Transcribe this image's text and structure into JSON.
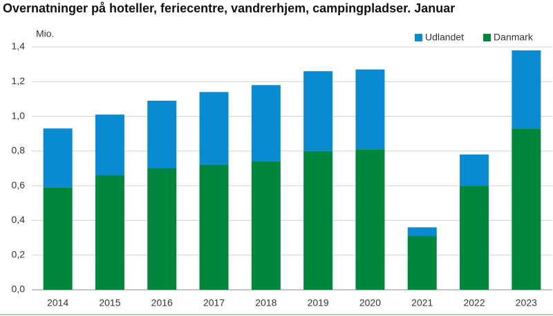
{
  "chart_data": {
    "type": "stacked_bar",
    "title": "Overnatninger på hoteller, feriecentre, vandrerhjem, campingpladser. Januar",
    "y_label": "Mio.",
    "categories": [
      "2014",
      "2015",
      "2016",
      "2017",
      "2018",
      "2019",
      "2020",
      "2021",
      "2022",
      "2023"
    ],
    "series": [
      {
        "name": "Udlandet",
        "color": "#0a8bd1",
        "values": [
          0.34,
          0.35,
          0.39,
          0.42,
          0.44,
          0.46,
          0.46,
          0.05,
          0.18,
          0.45
        ]
      },
      {
        "name": "Danmark",
        "color": "#00873c",
        "values": [
          0.59,
          0.66,
          0.7,
          0.72,
          0.74,
          0.8,
          0.81,
          0.31,
          0.6,
          0.93
        ]
      }
    ],
    "ylim": [
      0,
      1.4
    ],
    "yticks": [
      {
        "value": 0,
        "label": "0,0"
      },
      {
        "value": 0.2,
        "label": "0,2"
      },
      {
        "value": 0.4,
        "label": "0,4"
      },
      {
        "value": 0.6,
        "label": "0,6"
      },
      {
        "value": 0.8,
        "label": "0,8"
      },
      {
        "value": 1.0,
        "label": "1,0"
      },
      {
        "value": 1.2,
        "label": "1,2"
      },
      {
        "value": 1.4,
        "label": "1,4"
      }
    ],
    "grid": true,
    "legend": "top-right"
  }
}
